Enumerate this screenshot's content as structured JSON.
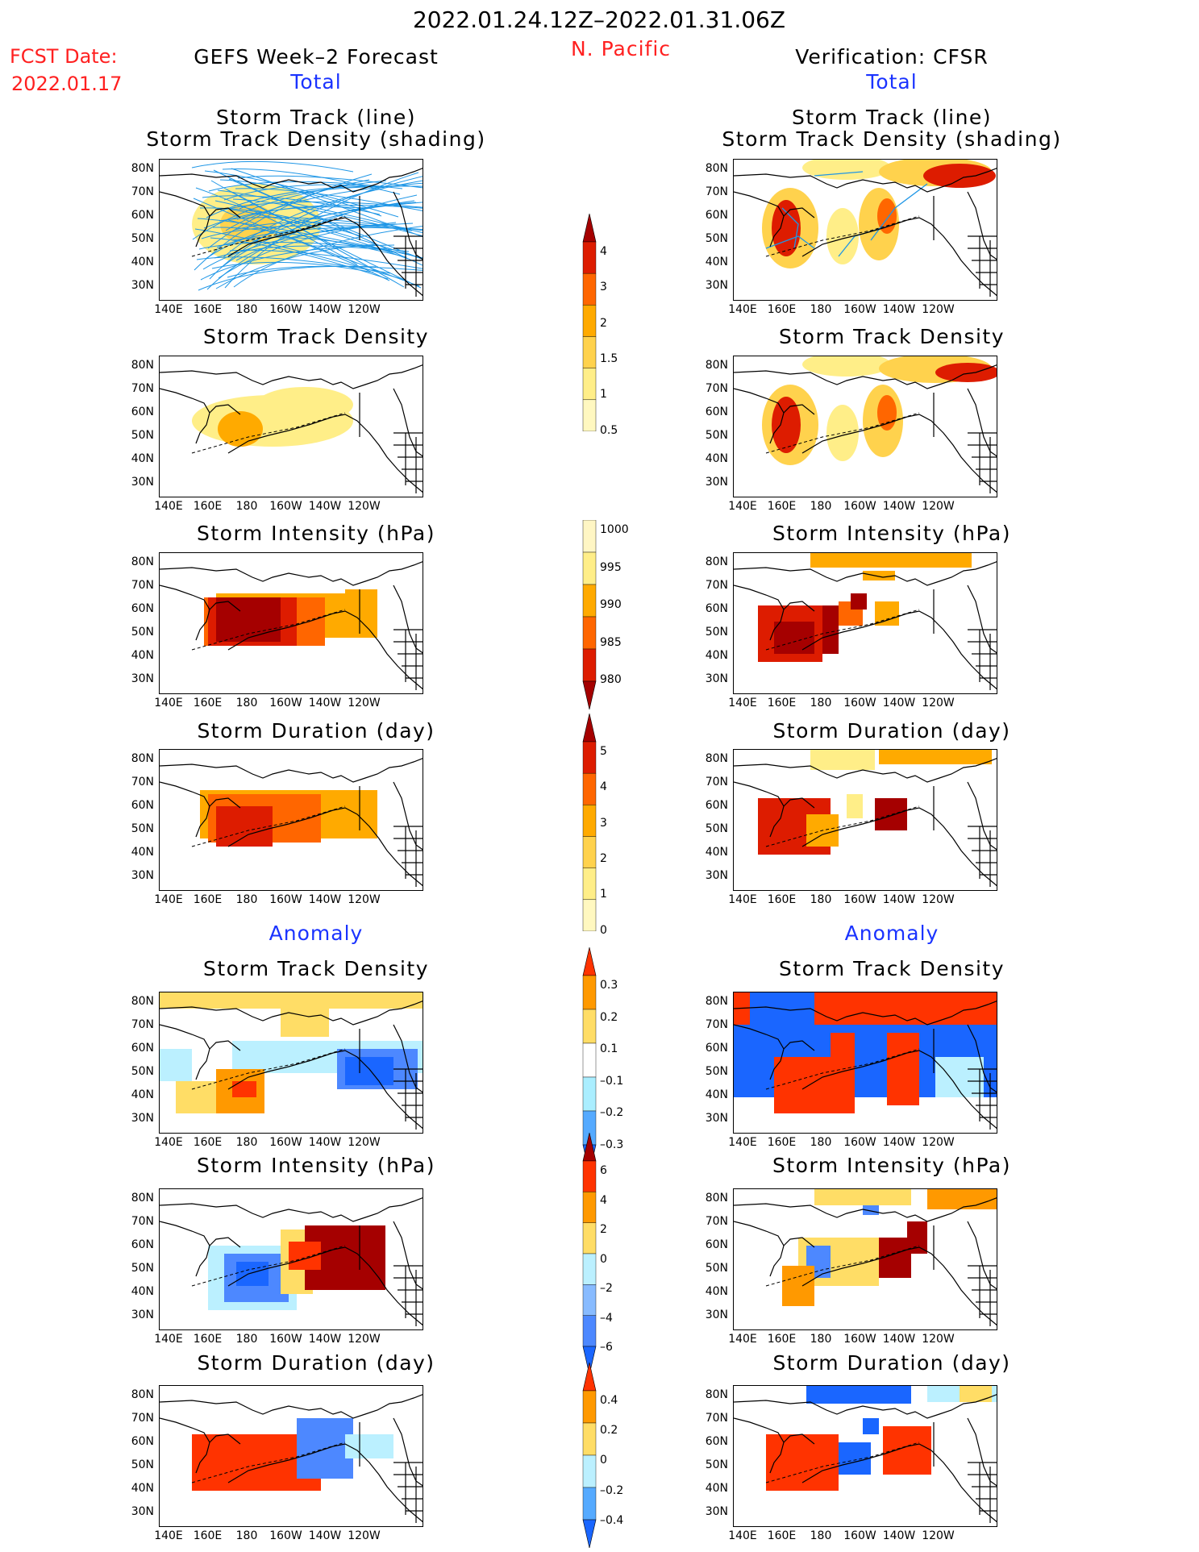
{
  "header": {
    "date_range": "2022.01.24.12Z–2022.01.31.06Z",
    "region": "N. Pacific",
    "fcst_label": "FCST Date:",
    "fcst_date": "2022.01.17",
    "left_title": "GEFS Week–2 Forecast",
    "right_title": "Verification: CFSR",
    "total_left": "Total",
    "total_right": "Total",
    "anomaly_left": "Anomaly",
    "anomaly_right": "Anomaly"
  },
  "panel_titles": {
    "track_line": "Storm Track (line)",
    "track_shading": "Storm Track Density (shading)",
    "density": "Storm Track Density",
    "intensity": "Storm Intensity (hPa)",
    "duration": "Storm Duration (day)"
  },
  "axes": {
    "lat_labels": [
      "80N",
      "70N",
      "60N",
      "50N",
      "40N",
      "30N"
    ],
    "lon_labels": [
      "140E",
      "160E",
      "180",
      "160W",
      "140W",
      "120W"
    ]
  },
  "colorbars": {
    "density_total": {
      "labels": [
        "4",
        "3",
        "2",
        "1.5",
        "1",
        "0.5"
      ],
      "colors": [
        "#a50000",
        "#dd1c00",
        "#ff6600",
        "#ffaa00",
        "#ffd24d",
        "#ffee88",
        "#fff8c0"
      ]
    },
    "intensity_total": {
      "labels": [
        "1000",
        "995",
        "990",
        "985",
        "980"
      ],
      "colors": [
        "#fff6c4",
        "#ffee88",
        "#ffaa00",
        "#ff6600",
        "#dd1c00",
        "#a50000"
      ]
    },
    "duration_total": {
      "labels": [
        "5",
        "4",
        "3",
        "2",
        "1",
        "0"
      ],
      "colors": [
        "#a50000",
        "#dd1c00",
        "#ff6600",
        "#ffaa00",
        "#ffd24d",
        "#ffee88",
        "#fff8c0"
      ]
    },
    "density_anom": {
      "labels": [
        "0.3",
        "0.2",
        "0.1",
        "–0.1",
        "–0.2",
        "–0.3"
      ],
      "colors": [
        "#ff3300",
        "#ff9900",
        "#ffdd66",
        "#ffffff",
        "#aaeeff",
        "#55aaff",
        "#1a66ff"
      ]
    },
    "intensity_anom": {
      "labels": [
        "6",
        "4",
        "2",
        "0",
        "–2",
        "–4",
        "–6"
      ],
      "colors": [
        "#a50000",
        "#ff3300",
        "#ff9900",
        "#ffdd66",
        "#bbf0ff",
        "#88bbff",
        "#4d88ff",
        "#1a66ff"
      ]
    },
    "duration_anom": {
      "labels": [
        "0.4",
        "0.2",
        "0",
        "–0.2",
        "–0.4"
      ],
      "colors": [
        "#ff3300",
        "#ff9900",
        "#ffdd66",
        "#bbf0ff",
        "#55aaff",
        "#1a66ff"
      ]
    }
  }
}
